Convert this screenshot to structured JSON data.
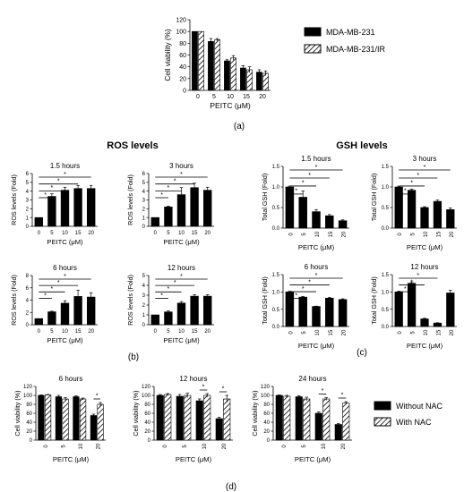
{
  "figure": {
    "panel_labels": {
      "a": "(a)",
      "b": "(b)",
      "c": "(c)",
      "d": "(d)"
    },
    "group_titles": {
      "ros": "ROS levels",
      "gsh": "GSH levels"
    }
  },
  "legends": {
    "a": [
      "MDA-MB-231",
      "MDA-MB-231/IR"
    ],
    "d": [
      "Without NAC",
      "With NAC"
    ]
  },
  "chart_data": [
    {
      "id": "a",
      "type": "bar",
      "title": "",
      "xlabel": "PEITC (μM)",
      "ylabel": "Cell viability (%)",
      "categories": [
        "0",
        "5",
        "10",
        "15",
        "20"
      ],
      "ylim": [
        0,
        120
      ],
      "yticks": [
        "0",
        "20",
        "40",
        "60",
        "80",
        "100",
        "120"
      ],
      "series": [
        {
          "name": "MDA-MB-231",
          "values": [
            100,
            83,
            50,
            38,
            31
          ],
          "errors": [
            0,
            5,
            2,
            4,
            4
          ]
        },
        {
          "name": "MDA-MB-231/IR",
          "values": [
            100,
            86,
            55,
            35,
            29
          ],
          "errors": [
            0,
            2,
            4,
            5,
            4
          ]
        }
      ],
      "legend": "right",
      "grid": false
    },
    {
      "id": "b1",
      "type": "bar",
      "title": "1.5 hours",
      "xlabel": "PEITC (μM)",
      "ylabel": "ROS levels (Fold)",
      "categories": [
        "0",
        "5",
        "10",
        "15",
        "20"
      ],
      "ylim": [
        0,
        6
      ],
      "yticks": [
        "0",
        "1",
        "2",
        "3",
        "4",
        "5",
        "6"
      ],
      "series": [
        {
          "values": [
            1,
            3.4,
            4.1,
            4.3,
            4.3
          ],
          "errors": [
            0,
            0.3,
            0.35,
            0.35,
            0.35
          ]
        }
      ],
      "significance": [
        {
          "from": "0",
          "to": "5",
          "label": "*"
        },
        {
          "from": "0",
          "to": "10",
          "label": "*"
        },
        {
          "from": "0",
          "to": "15",
          "label": "*"
        },
        {
          "from": "0",
          "to": "20",
          "label": "*"
        }
      ]
    },
    {
      "id": "b2",
      "type": "bar",
      "title": "3 hours",
      "xlabel": "PEITC (μM)",
      "ylabel": "ROS levels (Fold)",
      "categories": [
        "0",
        "5",
        "10",
        "15",
        "20"
      ],
      "ylim": [
        0,
        6
      ],
      "yticks": [
        "0",
        "1",
        "2",
        "3",
        "4",
        "5",
        "6"
      ],
      "series": [
        {
          "values": [
            1,
            2.2,
            3.6,
            4.4,
            4.1
          ],
          "errors": [
            0,
            0.1,
            0.8,
            0.5,
            0.35
          ]
        }
      ],
      "significance": [
        {
          "from": "0",
          "to": "5",
          "label": "*"
        },
        {
          "from": "0",
          "to": "10",
          "label": "*"
        },
        {
          "from": "0",
          "to": "15",
          "label": "*"
        },
        {
          "from": "0",
          "to": "20",
          "label": "*"
        }
      ]
    },
    {
      "id": "b3",
      "type": "bar",
      "title": "6 hours",
      "xlabel": "PEITC (μM)",
      "ylabel": "ROS levels (Fold)",
      "categories": [
        "0",
        "5",
        "10",
        "15",
        "20"
      ],
      "ylim": [
        0,
        8
      ],
      "yticks": [
        "0",
        "2",
        "4",
        "6",
        "8"
      ],
      "series": [
        {
          "values": [
            1,
            2.1,
            3.5,
            4.6,
            4.5
          ],
          "errors": [
            0,
            0.1,
            0.4,
            1.0,
            0.7
          ]
        }
      ],
      "significance": [
        {
          "from": "0",
          "to": "5",
          "label": "*"
        },
        {
          "from": "0",
          "to": "10",
          "label": "*"
        },
        {
          "from": "0",
          "to": "15",
          "label": "*"
        },
        {
          "from": "0",
          "to": "20",
          "label": "*"
        }
      ]
    },
    {
      "id": "b4",
      "type": "bar",
      "title": "12 hours",
      "xlabel": "PEITC (μM)",
      "ylabel": "ROS levels (Fold)",
      "categories": [
        "0",
        "5",
        "10",
        "15",
        "20"
      ],
      "ylim": [
        0,
        5
      ],
      "yticks": [
        "0",
        "1",
        "2",
        "3",
        "4",
        "5"
      ],
      "series": [
        {
          "values": [
            1,
            1.3,
            2.2,
            2.9,
            2.9
          ],
          "errors": [
            0,
            0.1,
            0.15,
            0.15,
            0.15
          ]
        }
      ],
      "significance": [
        {
          "from": "0",
          "to": "5",
          "label": "*"
        },
        {
          "from": "0",
          "to": "10",
          "label": "*"
        },
        {
          "from": "0",
          "to": "15",
          "label": "*"
        },
        {
          "from": "0",
          "to": "20",
          "label": "*"
        }
      ]
    },
    {
      "id": "c1",
      "type": "bar",
      "title": "1.5 hours",
      "xlabel": "PEITC (μM)",
      "ylabel": "Total GSH (Fold)",
      "categories": [
        "0",
        "5",
        "10",
        "15",
        "20"
      ],
      "ylim": [
        0,
        1.5
      ],
      "yticks": [
        "0.0",
        "0.5",
        "1.0",
        "1.5"
      ],
      "series": [
        {
          "values": [
            1.0,
            0.75,
            0.4,
            0.3,
            0.18
          ],
          "errors": [
            0.02,
            0.15,
            0.05,
            0.03,
            0.02
          ]
        }
      ],
      "significance": [
        {
          "from": "0",
          "to": "5",
          "label": "*"
        },
        {
          "from": "0",
          "to": "10",
          "label": "*"
        },
        {
          "from": "0",
          "to": "15",
          "label": "*"
        },
        {
          "from": "0",
          "to": "20",
          "label": "*"
        }
      ]
    },
    {
      "id": "c2",
      "type": "bar",
      "title": "3 hours",
      "xlabel": "PEITC (μM)",
      "ylabel": "Total GSH (Fold)",
      "categories": [
        "0",
        "5",
        "10",
        "15",
        "20"
      ],
      "ylim": [
        0,
        1.5
      ],
      "yticks": [
        "0.0",
        "0.5",
        "1.0",
        "1.5"
      ],
      "series": [
        {
          "values": [
            1.0,
            0.92,
            0.5,
            0.65,
            0.45
          ],
          "errors": [
            0.02,
            0.03,
            0.02,
            0.03,
            0.04
          ]
        }
      ],
      "significance": [
        {
          "from": "0",
          "to": "5",
          "label": "*"
        },
        {
          "from": "0",
          "to": "10",
          "label": "*"
        },
        {
          "from": "0",
          "to": "15",
          "label": "*"
        },
        {
          "from": "0",
          "to": "20",
          "label": "*"
        }
      ]
    },
    {
      "id": "c3",
      "type": "bar",
      "title": "6 hours",
      "xlabel": "PEITC (μM)",
      "ylabel": "Total GSH (Fold)",
      "categories": [
        "0",
        "5",
        "10",
        "15",
        "20"
      ],
      "ylim": [
        0,
        1.5
      ],
      "yticks": [
        "0.0",
        "0.5",
        "1.0",
        "1.5"
      ],
      "series": [
        {
          "values": [
            1.0,
            0.85,
            0.58,
            0.82,
            0.78
          ],
          "errors": [
            0.02,
            0.02,
            0.01,
            0.02,
            0.02
          ]
        }
      ],
      "significance": [
        {
          "from": "0",
          "to": "5",
          "label": "*"
        },
        {
          "from": "0",
          "to": "10",
          "label": "*"
        },
        {
          "from": "0",
          "to": "15",
          "label": "*"
        },
        {
          "from": "0",
          "to": "20",
          "label": "*"
        }
      ]
    },
    {
      "id": "c4",
      "type": "bar",
      "title": "12 hours",
      "xlabel": "PEITC (μM)",
      "ylabel": "Total GSH (Fold)",
      "categories": [
        "0",
        "5",
        "10",
        "15",
        "20"
      ],
      "ylim": [
        0,
        1.5
      ],
      "yticks": [
        "0.0",
        "0.5",
        "1.0",
        "1.5"
      ],
      "series": [
        {
          "values": [
            1.0,
            1.25,
            0.22,
            0.1,
            0.97
          ],
          "errors": [
            0.02,
            0.04,
            0.02,
            0.01,
            0.08
          ]
        }
      ],
      "significance": [
        {
          "from": "0",
          "to": "5",
          "label": "*"
        },
        {
          "from": "0",
          "to": "10",
          "label": "*"
        },
        {
          "from": "0",
          "to": "15",
          "label": "*"
        }
      ]
    },
    {
      "id": "d1",
      "type": "bar",
      "title": "6 hours",
      "xlabel": "PEITC (μM)",
      "ylabel": "Cell viability (%)",
      "categories": [
        "0",
        "5",
        "10",
        "20"
      ],
      "ylim": [
        0,
        120
      ],
      "yticks": [
        "0",
        "20",
        "40",
        "60",
        "80",
        "100",
        "120"
      ],
      "series": [
        {
          "name": "Without NAC",
          "values": [
            100,
            97,
            97,
            55
          ],
          "errors": [
            1,
            3,
            2,
            3
          ]
        },
        {
          "name": "With NAC",
          "values": [
            101,
            92,
            92,
            80
          ],
          "errors": [
            1,
            3,
            2,
            4
          ]
        }
      ],
      "significance": [
        {
          "category": "20",
          "label": "*"
        }
      ]
    },
    {
      "id": "d2",
      "type": "bar",
      "title": "12 hours",
      "xlabel": "PEITC (μM)",
      "ylabel": "Cell viability (%)",
      "categories": [
        "0",
        "5",
        "10",
        "20"
      ],
      "ylim": [
        0,
        120
      ],
      "yticks": [
        "0",
        "20",
        "40",
        "60",
        "80",
        "100",
        "120"
      ],
      "series": [
        {
          "name": "Without NAC",
          "values": [
            100,
            98,
            88,
            48
          ],
          "errors": [
            2,
            4,
            4,
            3
          ]
        },
        {
          "name": "With NAC",
          "values": [
            102,
            100,
            100,
            92
          ],
          "errors": [
            2,
            5,
            4,
            8
          ]
        }
      ],
      "significance": [
        {
          "category": "10",
          "label": "*"
        },
        {
          "category": "20",
          "label": "*"
        }
      ]
    },
    {
      "id": "d3",
      "type": "bar",
      "title": "24 hours",
      "xlabel": "PEITC (μM)",
      "ylabel": "Cell viability (%)",
      "categories": [
        "0",
        "5",
        "10",
        "20"
      ],
      "ylim": [
        0,
        120
      ],
      "yticks": [
        "0",
        "20",
        "40",
        "60",
        "80",
        "100",
        "120"
      ],
      "series": [
        {
          "name": "Without NAC",
          "values": [
            100,
            97,
            60,
            35
          ],
          "errors": [
            1,
            2,
            3,
            2
          ]
        },
        {
          "name": "With NAC",
          "values": [
            98,
            92,
            92,
            83
          ],
          "errors": [
            2,
            4,
            3,
            3
          ]
        }
      ],
      "significance": [
        {
          "category": "10",
          "label": "*"
        },
        {
          "category": "20",
          "label": "*"
        }
      ]
    }
  ]
}
